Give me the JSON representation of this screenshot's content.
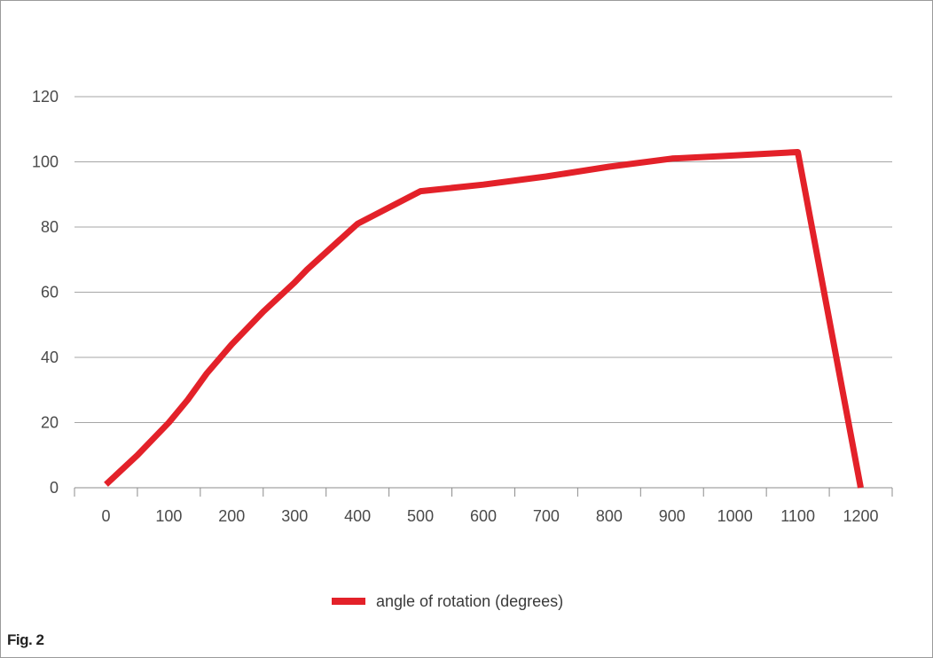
{
  "figure_label": "Fig. 2",
  "chart_data": {
    "type": "line",
    "title": "",
    "xlabel": "",
    "ylabel": "",
    "categories": [
      "0",
      "100",
      "200",
      "300",
      "400",
      "500",
      "600",
      "700",
      "800",
      "900",
      "1000",
      "1100",
      "1200"
    ],
    "ylim": [
      0,
      120
    ],
    "yticks": [
      0,
      20,
      40,
      60,
      80,
      100,
      120
    ],
    "grid": true,
    "legend_position": "bottom",
    "series": [
      {
        "name": "angle of rotation (degrees)",
        "color": "#e32129",
        "points": [
          {
            "x": 0,
            "y": 1
          },
          {
            "x": 50,
            "y": 10
          },
          {
            "x": 100,
            "y": 20
          },
          {
            "x": 130,
            "y": 27
          },
          {
            "x": 160,
            "y": 35
          },
          {
            "x": 200,
            "y": 44
          },
          {
            "x": 250,
            "y": 54
          },
          {
            "x": 300,
            "y": 63
          },
          {
            "x": 320,
            "y": 67
          },
          {
            "x": 400,
            "y": 81
          },
          {
            "x": 500,
            "y": 91
          },
          {
            "x": 600,
            "y": 93
          },
          {
            "x": 700,
            "y": 95.5
          },
          {
            "x": 800,
            "y": 98.5
          },
          {
            "x": 900,
            "y": 101
          },
          {
            "x": 1000,
            "y": 102
          },
          {
            "x": 1100,
            "y": 103
          },
          {
            "x": 1200,
            "y": 0
          }
        ]
      }
    ]
  }
}
